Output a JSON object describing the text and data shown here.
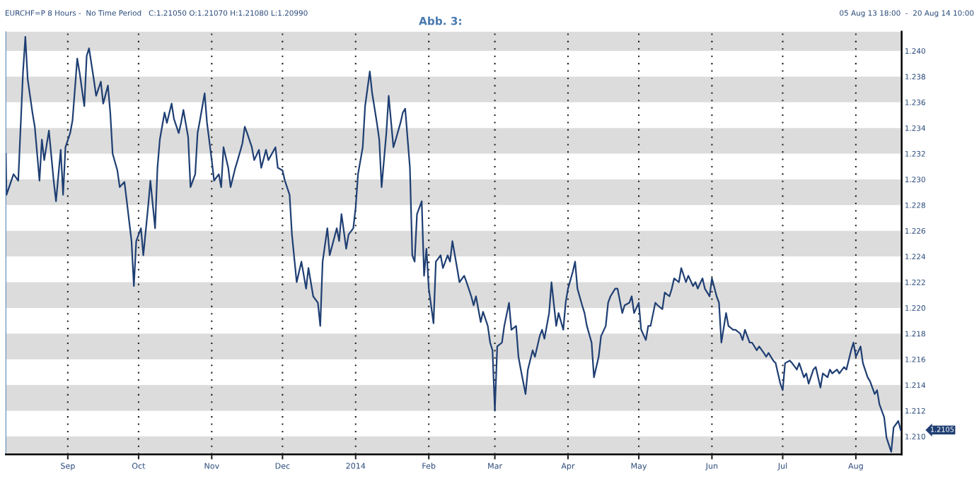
{
  "chart_data": {
    "type": "line",
    "title": "Abb. 3:",
    "annotations": [
      "EURCHF=P 8 Hours -  No Time Period   C:1.21050 O:1.21070 H:1.21080 L:1.20990",
      "05 Aug 13 18:00  -  20 Aug 14 10:00",
      "1.2105"
    ],
    "x": [
      "2013-08-05T18:00",
      "2013-08-06",
      "2013-08-09",
      "2013-08-11",
      "2013-08-13",
      "2013-08-14",
      "2013-08-15",
      "2013-08-17",
      "2013-08-18",
      "2013-08-20",
      "2013-08-21",
      "2013-08-22",
      "2013-08-24",
      "2013-08-26",
      "2013-08-27",
      "2013-08-29",
      "2013-08-30",
      "2013-08-31",
      "2013-09-02",
      "2013-09-03",
      "2013-09-05",
      "2013-09-06",
      "2013-09-08",
      "2013-09-09",
      "2013-09-10",
      "2013-09-12",
      "2013-09-13",
      "2013-09-15",
      "2013-09-16",
      "2013-09-18",
      "2013-09-19",
      "2013-09-20",
      "2013-09-22",
      "2013-09-23",
      "2013-09-25",
      "2013-09-26",
      "2013-09-28",
      "2013-09-29",
      "2013-09-30",
      "2013-10-02",
      "2013-10-03",
      "2013-10-05",
      "2013-10-06",
      "2013-10-08",
      "2013-10-09",
      "2013-10-10",
      "2013-10-12",
      "2013-10-13",
      "2013-10-15",
      "2013-10-16",
      "2013-10-18",
      "2013-10-19",
      "2013-10-20",
      "2013-10-22",
      "2013-10-23",
      "2013-10-25",
      "2013-10-26",
      "2013-10-27",
      "2013-10-29",
      "2013-10-30",
      "2013-11-01",
      "2013-11-02",
      "2013-11-04",
      "2013-11-05",
      "2013-11-06",
      "2013-11-08",
      "2013-11-09",
      "2013-11-11",
      "2013-11-12",
      "2013-11-14",
      "2013-11-15",
      "2013-11-16",
      "2013-11-18",
      "2013-11-19",
      "2013-11-21",
      "2013-11-22",
      "2013-11-24",
      "2013-11-25",
      "2013-11-28",
      "2013-11-29",
      "2013-12-01",
      "2013-12-02",
      "2013-12-04",
      "2013-12-05",
      "2013-12-07",
      "2013-12-09",
      "2013-12-11",
      "2013-12-12",
      "2013-12-14",
      "2013-12-16",
      "2013-12-17",
      "2013-12-18",
      "2013-12-20",
      "2013-12-21",
      "2013-12-24",
      "2013-12-25",
      "2013-12-26",
      "2013-12-28",
      "2013-12-29",
      "2013-12-31",
      "2014-01-01",
      "2014-01-02",
      "2014-01-04",
      "2014-01-05",
      "2014-01-07",
      "2014-01-08",
      "2014-01-10",
      "2014-01-11",
      "2014-01-12",
      "2014-01-14",
      "2014-01-15",
      "2014-01-17",
      "2014-01-18",
      "2014-01-20",
      "2014-01-21",
      "2014-01-22",
      "2014-01-24",
      "2014-01-25",
      "2014-01-26",
      "2014-01-27",
      "2014-01-29",
      "2014-01-30",
      "2014-01-31",
      "2014-02-01",
      "2014-02-03",
      "2014-02-04",
      "2014-02-06",
      "2014-02-07",
      "2014-02-09",
      "2014-02-10",
      "2014-02-11",
      "2014-02-13",
      "2014-02-14",
      "2014-02-16",
      "2014-02-17",
      "2014-02-19",
      "2014-02-20",
      "2014-02-21",
      "2014-02-23",
      "2014-02-24",
      "2014-02-26",
      "2014-02-27",
      "2014-02-28",
      "2014-03-01",
      "2014-03-02",
      "2014-03-04",
      "2014-03-05",
      "2014-03-07",
      "2014-03-08",
      "2014-03-10",
      "2014-03-11",
      "2014-03-12",
      "2014-03-14",
      "2014-03-15",
      "2014-03-17",
      "2014-03-18",
      "2014-03-20",
      "2014-03-21",
      "2014-03-22",
      "2014-03-24",
      "2014-03-25",
      "2014-03-27",
      "2014-03-28",
      "2014-03-30",
      "2014-03-31",
      "2014-04-01",
      "2014-04-03",
      "2014-04-04",
      "2014-04-05",
      "2014-04-07",
      "2014-04-08",
      "2014-04-09",
      "2014-04-11",
      "2014-04-12",
      "2014-04-14",
      "2014-04-15",
      "2014-04-17",
      "2014-04-18",
      "2014-04-19",
      "2014-04-21",
      "2014-04-22",
      "2014-04-24",
      "2014-04-25",
      "2014-04-27",
      "2014-04-28",
      "2014-04-29",
      "2014-05-01",
      "2014-05-02",
      "2014-05-04",
      "2014-05-05",
      "2014-05-06",
      "2014-05-08",
      "2014-05-09",
      "2014-05-11",
      "2014-05-12",
      "2014-05-14",
      "2014-05-15",
      "2014-05-16",
      "2014-05-18",
      "2014-05-19",
      "2014-05-21",
      "2014-05-22",
      "2014-05-24",
      "2014-05-25",
      "2014-05-26",
      "2014-05-28",
      "2014-05-29",
      "2014-05-31",
      "2014-06-01",
      "2014-06-03",
      "2014-06-04",
      "2014-06-05",
      "2014-06-07",
      "2014-06-08",
      "2014-06-10",
      "2014-06-11",
      "2014-06-13",
      "2014-06-14",
      "2014-06-15",
      "2014-06-17",
      "2014-06-18",
      "2014-06-20",
      "2014-06-21",
      "2014-06-23",
      "2014-06-24",
      "2014-06-25",
      "2014-06-27",
      "2014-06-28",
      "2014-06-30",
      "2014-07-01",
      "2014-07-02",
      "2014-07-04",
      "2014-07-05",
      "2014-07-07",
      "2014-07-08",
      "2014-07-10",
      "2014-07-11",
      "2014-07-12",
      "2014-07-14",
      "2014-07-15",
      "2014-07-17",
      "2014-07-18",
      "2014-07-20",
      "2014-07-21",
      "2014-07-22",
      "2014-07-24",
      "2014-07-25",
      "2014-07-27",
      "2014-07-28",
      "2014-07-30",
      "2014-07-31",
      "2014-08-01",
      "2014-08-03",
      "2014-08-04",
      "2014-08-06",
      "2014-08-07",
      "2014-08-09",
      "2014-08-10",
      "2014-08-11",
      "2014-08-13",
      "2014-08-14",
      "2014-08-16",
      "2014-08-17",
      "2014-08-19",
      "2014-08-20"
    ],
    "series": [
      {
        "color": "#1f3f73",
        "values": [
          1.232,
          1.2288,
          1.2304,
          1.2299,
          1.2383,
          1.2411,
          1.2378,
          1.2352,
          1.2341,
          1.2299,
          1.2331,
          1.2315,
          1.2338,
          1.2299,
          1.2283,
          1.2323,
          1.2288,
          1.2325,
          1.2336,
          1.2346,
          1.2394,
          1.2383,
          1.2357,
          1.2396,
          1.2402,
          1.2378,
          1.2365,
          1.2376,
          1.2359,
          1.2373,
          1.2352,
          1.232,
          1.2307,
          1.2294,
          1.2298,
          1.2283,
          1.2252,
          1.2217,
          1.2252,
          1.2262,
          1.2241,
          1.2278,
          1.2299,
          1.2262,
          1.2309,
          1.2331,
          1.2352,
          1.2344,
          1.2359,
          1.2347,
          1.2336,
          1.2344,
          1.2354,
          1.2333,
          1.2294,
          1.2304,
          1.2336,
          1.2346,
          1.2367,
          1.2344,
          1.2315,
          1.2299,
          1.2304,
          1.2294,
          1.2325,
          1.2309,
          1.2294,
          1.2309,
          1.2315,
          1.2328,
          1.2341,
          1.2336,
          1.2325,
          1.2315,
          1.2323,
          1.2309,
          1.2323,
          1.2315,
          1.2325,
          1.2309,
          1.2307,
          1.2299,
          1.2288,
          1.2257,
          1.222,
          1.2236,
          1.2215,
          1.2231,
          1.2209,
          1.2204,
          1.2186,
          1.2236,
          1.2262,
          1.2241,
          1.2262,
          1.2252,
          1.2273,
          1.2246,
          1.2257,
          1.2262,
          1.2278,
          1.2304,
          1.2325,
          1.2357,
          1.2384,
          1.2367,
          1.2344,
          1.2331,
          1.2294,
          1.2336,
          1.2365,
          1.2325,
          1.2331,
          1.2344,
          1.2352,
          1.2355,
          1.2309,
          1.2241,
          1.2236,
          1.2273,
          1.2283,
          1.2225,
          1.2246,
          1.2215,
          1.2188,
          1.2236,
          1.2241,
          1.2231,
          1.2241,
          1.2236,
          1.2252,
          1.2231,
          1.222,
          1.2225,
          1.222,
          1.2209,
          1.2202,
          1.2209,
          1.2189,
          1.2197,
          1.2186,
          1.2173,
          1.2167,
          1.212,
          1.217,
          1.2173,
          1.2186,
          1.2204,
          1.2183,
          1.2186,
          1.2162,
          1.2152,
          1.2133,
          1.2152,
          1.2167,
          1.2162,
          1.2178,
          1.2183,
          1.2176,
          1.2196,
          1.222,
          1.2186,
          1.2196,
          1.2183,
          1.2204,
          1.2215,
          1.2228,
          1.2236,
          1.2215,
          1.2202,
          1.2196,
          1.2186,
          1.2173,
          1.2146,
          1.2162,
          1.2178,
          1.2186,
          1.2204,
          1.2209,
          1.2215,
          1.2215,
          1.2196,
          1.2202,
          1.2204,
          1.2209,
          1.2196,
          1.2204,
          1.2183,
          1.2175,
          1.2186,
          1.2186,
          1.2204,
          1.2202,
          1.2199,
          1.2212,
          1.2209,
          1.2215,
          1.2223,
          1.222,
          1.2231,
          1.222,
          1.2225,
          1.2217,
          1.222,
          1.2215,
          1.2223,
          1.2215,
          1.2209,
          1.2223,
          1.2209,
          1.2204,
          1.2173,
          1.2196,
          1.2186,
          1.2183,
          1.2183,
          1.218,
          1.2175,
          1.2183,
          1.2173,
          1.2173,
          1.2167,
          1.217,
          1.2165,
          1.2162,
          1.2165,
          1.2159,
          1.2157,
          1.2141,
          1.2136,
          1.2157,
          1.2159,
          1.2157,
          1.2152,
          1.2157,
          1.2146,
          1.2149,
          1.2141,
          1.2152,
          1.2154,
          1.2138,
          1.2149,
          1.2146,
          1.2152,
          1.2149,
          1.2152,
          1.2149,
          1.2154,
          1.2152,
          1.2167,
          1.2173,
          1.2162,
          1.217,
          1.2157,
          1.2146,
          1.2143,
          1.2133,
          1.2136,
          1.2125,
          1.2115,
          1.2099,
          1.2088,
          1.2107,
          1.2112,
          1.2105
        ]
      }
    ],
    "xlim": [
      "2013-08-05T18:00",
      "2014-08-20T10:00"
    ],
    "xticks": [
      {
        "value": "2013-09-01",
        "label": "Sep"
      },
      {
        "value": "2013-10-01",
        "label": "Oct"
      },
      {
        "value": "2013-11-01",
        "label": "Nov"
      },
      {
        "value": "2013-12-01",
        "label": "Dec"
      },
      {
        "value": "2014-01-01",
        "label": "2014"
      },
      {
        "value": "2014-02-01",
        "label": "Feb"
      },
      {
        "value": "2014-03-01",
        "label": "Mar"
      },
      {
        "value": "2014-04-01",
        "label": "Apr"
      },
      {
        "value": "2014-05-01",
        "label": "May"
      },
      {
        "value": "2014-06-01",
        "label": "Jun"
      },
      {
        "value": "2014-07-01",
        "label": "Jul"
      },
      {
        "value": "2014-08-01",
        "label": "Aug"
      }
    ],
    "ylim": [
      1.2086,
      1.2415
    ],
    "yticks": [
      {
        "value": 1.21,
        "label": "1.210"
      },
      1.212,
      1.214,
      1.216,
      1.218,
      {
        "value": 1.22,
        "label": "1.220"
      },
      1.222,
      1.224,
      1.226,
      1.228,
      {
        "value": 1.23,
        "label": "1.230"
      },
      1.232,
      1.234,
      1.236,
      1.238,
      {
        "value": 1.24,
        "label": "1.240"
      }
    ],
    "bands": [
      {
        "axis": "y",
        "from": 1.2086,
        "to": 1.21,
        "color": "#dcdcdc"
      },
      {
        "axis": "y",
        "from": 1.212,
        "to": 1.214,
        "color": "#dcdcdc"
      },
      {
        "axis": "y",
        "from": 1.216,
        "to": 1.218,
        "color": "#dcdcdc"
      },
      {
        "axis": "y",
        "from": 1.22,
        "to": 1.222,
        "color": "#dcdcdc"
      },
      {
        "axis": "y",
        "from": 1.224,
        "to": 1.226,
        "color": "#dcdcdc"
      },
      {
        "axis": "y",
        "from": 1.228,
        "to": 1.23,
        "color": "#dcdcdc"
      },
      {
        "axis": "y",
        "from": 1.232,
        "to": 1.234,
        "color": "#dcdcdc"
      },
      {
        "axis": "y",
        "from": 1.236,
        "to": 1.238,
        "color": "#dcdcdc"
      },
      {
        "axis": "y",
        "from": 1.24,
        "to": 1.2415,
        "color": "#dcdcdc"
      }
    ],
    "grid": "x",
    "line_style": "solid",
    "marker": "none"
  }
}
